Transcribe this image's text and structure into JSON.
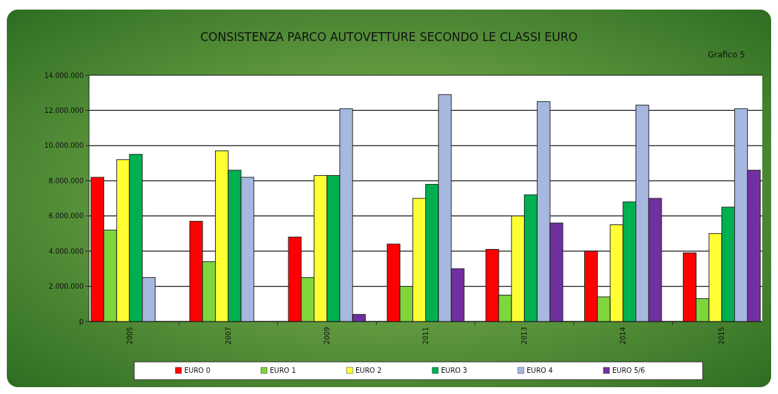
{
  "chart_data": {
    "type": "bar",
    "title": "CONSISTENZA PARCO AUTOVETTURE SECONDO LE CLASSI EURO",
    "annotations": [
      "Grafico 5"
    ],
    "categories": [
      "2005",
      "2007",
      "2009",
      "2011",
      "2013",
      "2014",
      "2015"
    ],
    "series": [
      {
        "name": "EURO 0",
        "color": "#ff0000",
        "values": [
          8200000,
          5700000,
          4800000,
          4400000,
          4100000,
          4000000,
          3900000
        ]
      },
      {
        "name": "EURO 1",
        "color": "#7ed63c",
        "values": [
          5200000,
          3400000,
          2500000,
          2000000,
          1500000,
          1400000,
          1300000
        ]
      },
      {
        "name": "EURO 2",
        "color": "#ffff33",
        "values": [
          9200000,
          9700000,
          8300000,
          7000000,
          6000000,
          5500000,
          5000000
        ]
      },
      {
        "name": "EURO 3",
        "color": "#00b050",
        "values": [
          9500000,
          8600000,
          8300000,
          7800000,
          7200000,
          6800000,
          6500000
        ]
      },
      {
        "name": "EURO 4",
        "color": "#a6b8e0",
        "values": [
          2500000,
          8200000,
          12100000,
          12900000,
          12500000,
          12300000,
          12100000
        ]
      },
      {
        "name": "EURO 5/6",
        "color": "#7030a0",
        "values": [
          null,
          null,
          400000,
          3000000,
          5600000,
          7000000,
          8600000
        ]
      }
    ],
    "ylim": [
      0,
      14000000
    ],
    "yticks": [
      0,
      {
        "value": 2000000,
        "label": "2.000.000"
      },
      {
        "value": 4000000,
        "label": "4.000.000"
      },
      {
        "value": 6000000,
        "label": "6.000.000"
      },
      {
        "value": 8000000,
        "label": "8.000.000"
      },
      {
        "value": 10000000,
        "label": "10.000.000"
      },
      {
        "value": 12000000,
        "label": "12.000.000"
      },
      {
        "value": 14000000,
        "label": "14.000.000"
      }
    ],
    "grid": "y",
    "legend": "bottom"
  }
}
